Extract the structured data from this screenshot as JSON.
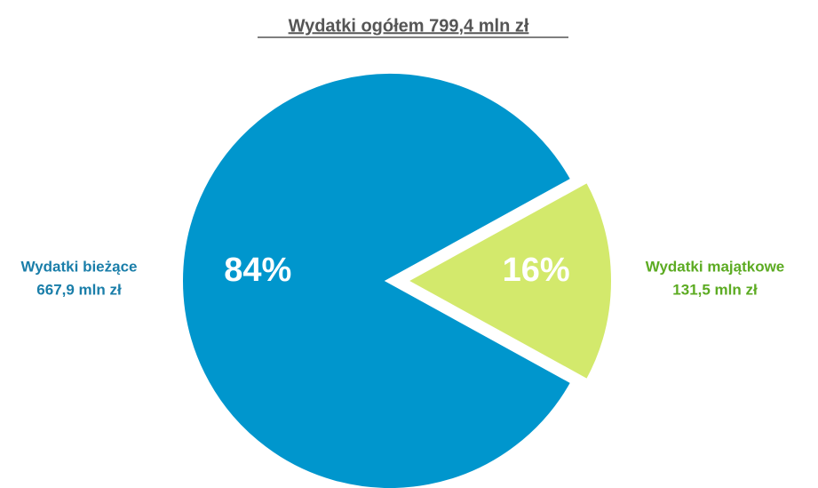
{
  "chart_data": {
    "type": "pie",
    "title": "Wydatki ogółem 799,4 mln zł",
    "categories": [
      "Wydatki bieżące",
      "Wydatki majątkowe"
    ],
    "annotations": [
      "667,9 mln zł",
      "131,5 mln zł"
    ],
    "values": [
      84,
      16
    ],
    "value_labels": [
      "84%",
      "16%"
    ],
    "colors": [
      "#0096cd",
      "#d3e96c"
    ],
    "label_colors": [
      "#1a7ea9",
      "#5cab22"
    ]
  }
}
